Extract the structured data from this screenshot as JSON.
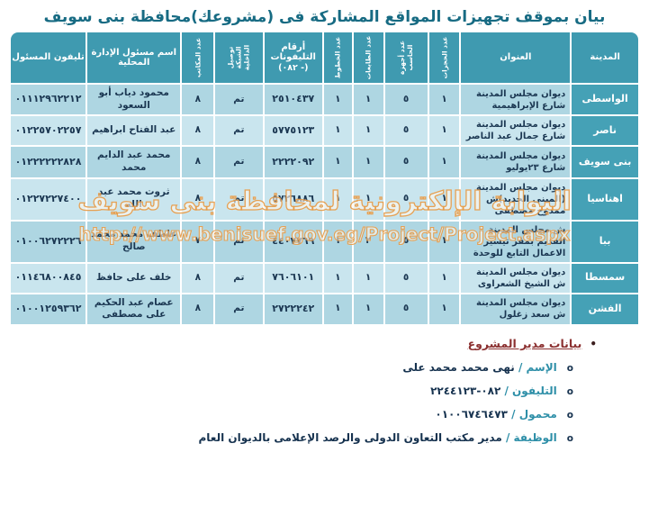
{
  "title": "بيان بموقف تجهيزات المواقع المشاركة فى (مشروعك)محافظة بنى سويف",
  "table": {
    "columns": [
      {
        "key": "city",
        "label": "المدينة",
        "vertical": false
      },
      {
        "key": "address",
        "label": "العنوان",
        "vertical": false
      },
      {
        "key": "rooms",
        "label": "عدد الحجرات",
        "vertical": true
      },
      {
        "key": "computers",
        "label": "عدد أجهزة الحاسب",
        "vertical": true
      },
      {
        "key": "printers",
        "label": "عدد الطابعات",
        "vertical": true
      },
      {
        "key": "lines",
        "label": "عدد الخطوط",
        "vertical": true
      },
      {
        "key": "phones",
        "label": "أرقام التليفونات",
        "code_line": "(٠٨٢ -)",
        "vertical": false
      },
      {
        "key": "network",
        "label": "توصيل الشبكة الداخلية",
        "vertical": true
      },
      {
        "key": "desks",
        "label": "عدد المكاتب",
        "vertical": true
      },
      {
        "key": "manager",
        "label": "اسم مسئول الإدارة المحلية",
        "vertical": false
      },
      {
        "key": "manager_phone",
        "label": "تليفون المسئول",
        "vertical": false
      }
    ],
    "rows": [
      {
        "city": "الواسطى",
        "address": "ديوان مجلس المدينة شارع الإبراهيمية",
        "rooms": "١",
        "computers": "٥",
        "printers": "١",
        "lines": "١",
        "phones": "٢٥١٠٤٣٧",
        "network": "تم",
        "desks": "٨",
        "manager": "محمود دياب أبو السعود",
        "manager_phone": "٠١١١٢٩٦٢٢١٢"
      },
      {
        "city": "ناصر",
        "address": "ديوان مجلس المدينة شارع جمال عبد الناصر",
        "rooms": "١",
        "computers": "٥",
        "printers": "١",
        "lines": "١",
        "phones": "٥٧٧٥١٢٣",
        "network": "تم",
        "desks": "٨",
        "manager": "عبد الفتاح ابراهيم",
        "manager_phone": "٠١٢٢٥٧٠٢٢٥٧"
      },
      {
        "city": "بنى سويف",
        "address": "ديوان مجلس المدينة شارع ٢٣يوليو",
        "rooms": "١",
        "computers": "٥",
        "printers": "١",
        "lines": "١",
        "phones": "٢٢٢٢٠٩٢",
        "network": "تم",
        "desks": "٨",
        "manager": "محمد عبد الدايم محمد",
        "manager_phone": "٠١٢٢٢٢٢٢٨٢٨"
      },
      {
        "city": "اهناسيا",
        "address": "ديوان مجلس المدينة (المبنى الجديد)ش ممدوح مصطفى",
        "rooms": "١",
        "computers": "٥",
        "printers": "١",
        "lines": "١",
        "phones": "٥٧٢٦٨٨٦",
        "network": "تم",
        "desks": "٨",
        "manager": "ثروت محمد عبد الله",
        "manager_phone": "٠١٢٢٧٢٢٧٤٠٠"
      },
      {
        "city": "ببا",
        "address": "ش مجلس المدينة القديم بمقر تيسير الاعمال التابع للوحدة",
        "rooms": "١",
        "computers": "٥",
        "printers": "٢",
        "lines": "١",
        "phones": "٤٤٠٧٧٦٩",
        "network": "تم",
        "desks": "٧",
        "manager": "عاطف محمد محمد صالح",
        "manager_phone": "٠١٠٠٦٢٧٢٢٢٦"
      },
      {
        "city": "سمسطا",
        "address": "ديوان مجلس المدينة ش الشيخ الشعراوى",
        "rooms": "١",
        "computers": "٥",
        "printers": "١",
        "lines": "١",
        "phones": "٧٦٠٦١٠١",
        "network": "تم",
        "desks": "٨",
        "manager": "خلف على حافظ",
        "manager_phone": "٠١١٤٦٨٠٠٨٤٥"
      },
      {
        "city": "الفشن",
        "address": "ديوان مجلس المدينة ش سعد زغلول",
        "rooms": "١",
        "computers": "٥",
        "printers": "١",
        "lines": "١",
        "phones": "٢٧٢٢٢٤٢",
        "network": "تم",
        "desks": "٨",
        "manager": "عصام عبد الحكيم على مصطفى",
        "manager_phone": "٠١٠٠١٢٥٩٣٦٢"
      }
    ]
  },
  "watermark": {
    "line1": "البوابة الإلكترونية لمحافظة بنى سويف",
    "line2": "http://www.benisuef.gov.eg/Project/Project.aspx"
  },
  "footer": {
    "bullet": "•",
    "sub_bullet": "o",
    "heading": "بيانات مدير المشروع",
    "items": [
      {
        "label": "الإسم /",
        "value": "نهى محمد محمد على"
      },
      {
        "label": "التليفون /",
        "value": "٠٨٢-٢٢٤٤١٢٣"
      },
      {
        "label": "محمول /",
        "value": "٠١٠٠٦٧٤٦٤٧٣"
      },
      {
        "label": "الوظيفة /",
        "value": "مدير مكتب التعاون الدولى والرصد الإعلامى بالديوان العام"
      }
    ]
  },
  "colors": {
    "title": "#176b83",
    "header_bg": "#3f9ab0",
    "city_bg": "#45a1b6",
    "row_odd": "#aed6e2",
    "row_even": "#c9e5ee",
    "cell_text": "#1b3752",
    "watermark_orange": "#e69a46",
    "footer_heading": "#8b3030",
    "footer_label": "#2e8fa8"
  }
}
